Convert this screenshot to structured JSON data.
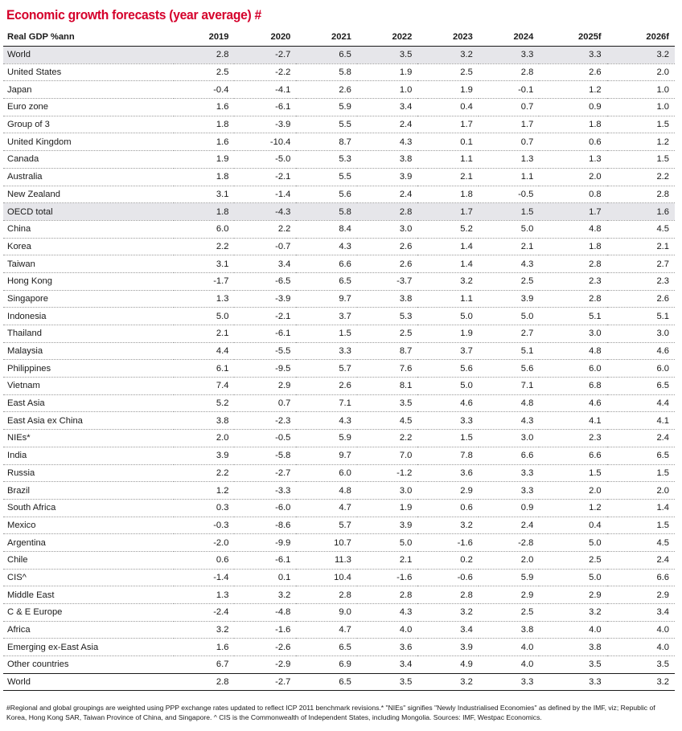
{
  "title": "Economic growth forecasts (year average) #",
  "header": {
    "label": "Real GDP %ann",
    "years": [
      "2019",
      "2020",
      "2021",
      "2022",
      "2023",
      "2024",
      "2025f",
      "2026f"
    ]
  },
  "rows": [
    {
      "name": "World",
      "values": [
        "2.8",
        "-2.7",
        "6.5",
        "3.5",
        "3.2",
        "3.3",
        "3.3",
        "3.2"
      ],
      "shaded": true
    },
    {
      "name": "United States",
      "values": [
        "2.5",
        "-2.2",
        "5.8",
        "1.9",
        "2.5",
        "2.8",
        "2.6",
        "2.0"
      ]
    },
    {
      "name": "Japan",
      "values": [
        "-0.4",
        "-4.1",
        "2.6",
        "1.0",
        "1.9",
        "-0.1",
        "1.2",
        "1.0"
      ]
    },
    {
      "name": "Euro zone",
      "values": [
        "1.6",
        "-6.1",
        "5.9",
        "3.4",
        "0.4",
        "0.7",
        "0.9",
        "1.0"
      ]
    },
    {
      "name": "Group of 3",
      "values": [
        "1.8",
        "-3.9",
        "5.5",
        "2.4",
        "1.7",
        "1.7",
        "1.8",
        "1.5"
      ]
    },
    {
      "name": "United Kingdom",
      "values": [
        "1.6",
        "-10.4",
        "8.7",
        "4.3",
        "0.1",
        "0.7",
        "0.6",
        "1.2"
      ]
    },
    {
      "name": "Canada",
      "values": [
        "1.9",
        "-5.0",
        "5.3",
        "3.8",
        "1.1",
        "1.3",
        "1.3",
        "1.5"
      ]
    },
    {
      "name": "Australia",
      "values": [
        "1.8",
        "-2.1",
        "5.5",
        "3.9",
        "2.1",
        "1.1",
        "2.0",
        "2.2"
      ]
    },
    {
      "name": "New Zealand",
      "values": [
        "3.1",
        "-1.4",
        "5.6",
        "2.4",
        "1.8",
        "-0.5",
        "0.8",
        "2.8"
      ]
    },
    {
      "name": "OECD total",
      "values": [
        "1.8",
        "-4.3",
        "5.8",
        "2.8",
        "1.7",
        "1.5",
        "1.7",
        "1.6"
      ],
      "shaded": true
    },
    {
      "name": "China",
      "values": [
        "6.0",
        "2.2",
        "8.4",
        "3.0",
        "5.2",
        "5.0",
        "4.8",
        "4.5"
      ]
    },
    {
      "name": "Korea",
      "values": [
        "2.2",
        "-0.7",
        "4.3",
        "2.6",
        "1.4",
        "2.1",
        "1.8",
        "2.1"
      ]
    },
    {
      "name": "Taiwan",
      "values": [
        "3.1",
        "3.4",
        "6.6",
        "2.6",
        "1.4",
        "4.3",
        "2.8",
        "2.7"
      ]
    },
    {
      "name": "Hong Kong",
      "values": [
        "-1.7",
        "-6.5",
        "6.5",
        "-3.7",
        "3.2",
        "2.5",
        "2.3",
        "2.3"
      ]
    },
    {
      "name": "Singapore",
      "values": [
        "1.3",
        "-3.9",
        "9.7",
        "3.8",
        "1.1",
        "3.9",
        "2.8",
        "2.6"
      ]
    },
    {
      "name": "Indonesia",
      "values": [
        "5.0",
        "-2.1",
        "3.7",
        "5.3",
        "5.0",
        "5.0",
        "5.1",
        "5.1"
      ]
    },
    {
      "name": "Thailand",
      "values": [
        "2.1",
        "-6.1",
        "1.5",
        "2.5",
        "1.9",
        "2.7",
        "3.0",
        "3.0"
      ]
    },
    {
      "name": "Malaysia",
      "values": [
        "4.4",
        "-5.5",
        "3.3",
        "8.7",
        "3.7",
        "5.1",
        "4.8",
        "4.6"
      ]
    },
    {
      "name": "Philippines",
      "values": [
        "6.1",
        "-9.5",
        "5.7",
        "7.6",
        "5.6",
        "5.6",
        "6.0",
        "6.0"
      ]
    },
    {
      "name": "Vietnam",
      "values": [
        "7.4",
        "2.9",
        "2.6",
        "8.1",
        "5.0",
        "7.1",
        "6.8",
        "6.5"
      ]
    },
    {
      "name": "East Asia",
      "values": [
        "5.2",
        "0.7",
        "7.1",
        "3.5",
        "4.6",
        "4.8",
        "4.6",
        "4.4"
      ]
    },
    {
      "name": "East Asia ex China",
      "values": [
        "3.8",
        "-2.3",
        "4.3",
        "4.5",
        "3.3",
        "4.3",
        "4.1",
        "4.1"
      ]
    },
    {
      "name": "NIEs*",
      "values": [
        "2.0",
        "-0.5",
        "5.9",
        "2.2",
        "1.5",
        "3.0",
        "2.3",
        "2.4"
      ]
    },
    {
      "name": "India",
      "values": [
        "3.9",
        "-5.8",
        "9.7",
        "7.0",
        "7.8",
        "6.6",
        "6.6",
        "6.5"
      ]
    },
    {
      "name": "Russia",
      "values": [
        "2.2",
        "-2.7",
        "6.0",
        "-1.2",
        "3.6",
        "3.3",
        "1.5",
        "1.5"
      ]
    },
    {
      "name": "Brazil",
      "values": [
        "1.2",
        "-3.3",
        "4.8",
        "3.0",
        "2.9",
        "3.3",
        "2.0",
        "2.0"
      ]
    },
    {
      "name": "South Africa",
      "values": [
        "0.3",
        "-6.0",
        "4.7",
        "1.9",
        "0.6",
        "0.9",
        "1.2",
        "1.4"
      ]
    },
    {
      "name": "Mexico",
      "values": [
        "-0.3",
        "-8.6",
        "5.7",
        "3.9",
        "3.2",
        "2.4",
        "0.4",
        "1.5"
      ]
    },
    {
      "name": "Argentina",
      "values": [
        "-2.0",
        "-9.9",
        "10.7",
        "5.0",
        "-1.6",
        "-2.8",
        "5.0",
        "4.5"
      ]
    },
    {
      "name": "Chile",
      "values": [
        "0.6",
        "-6.1",
        "11.3",
        "2.1",
        "0.2",
        "2.0",
        "2.5",
        "2.4"
      ]
    },
    {
      "name": "CIS^",
      "values": [
        "-1.4",
        "0.1",
        "10.4",
        "-1.6",
        "-0.6",
        "5.9",
        "5.0",
        "6.6"
      ]
    },
    {
      "name": "Middle East",
      "values": [
        "1.3",
        "3.2",
        "2.8",
        "2.8",
        "2.8",
        "2.9",
        "2.9",
        "2.9"
      ]
    },
    {
      "name": "C & E Europe",
      "values": [
        "-2.4",
        "-4.8",
        "9.0",
        "4.3",
        "3.2",
        "2.5",
        "3.2",
        "3.4"
      ]
    },
    {
      "name": "Africa",
      "values": [
        "3.2",
        "-1.6",
        "4.7",
        "4.0",
        "3.4",
        "3.8",
        "4.0",
        "4.0"
      ]
    },
    {
      "name": "Emerging ex-East Asia",
      "values": [
        "1.6",
        "-2.6",
        "6.5",
        "3.6",
        "3.9",
        "4.0",
        "3.8",
        "4.0"
      ]
    },
    {
      "name": "Other countries",
      "values": [
        "6.7",
        "-2.9",
        "6.9",
        "3.4",
        "4.9",
        "4.0",
        "3.5",
        "3.5"
      ]
    },
    {
      "name": "World",
      "values": [
        "2.8",
        "-2.7",
        "6.5",
        "3.5",
        "3.2",
        "3.3",
        "3.3",
        "3.2"
      ],
      "last": true
    }
  ],
  "footnote": "#Regional and global groupings are weighted using PPP exchange rates updated to reflect ICP 2011 benchmark revisions.* \"NIEs\" signifies \"Newly Industrialised Economies\" as defined by the IMF, viz; Republic of Korea, Hong Kong SAR, Taiwan Province of China, and Singapore. ^ CIS is the Commonwealth of Independent States, including Mongolia. Sources: IMF, Westpac Economics."
}
